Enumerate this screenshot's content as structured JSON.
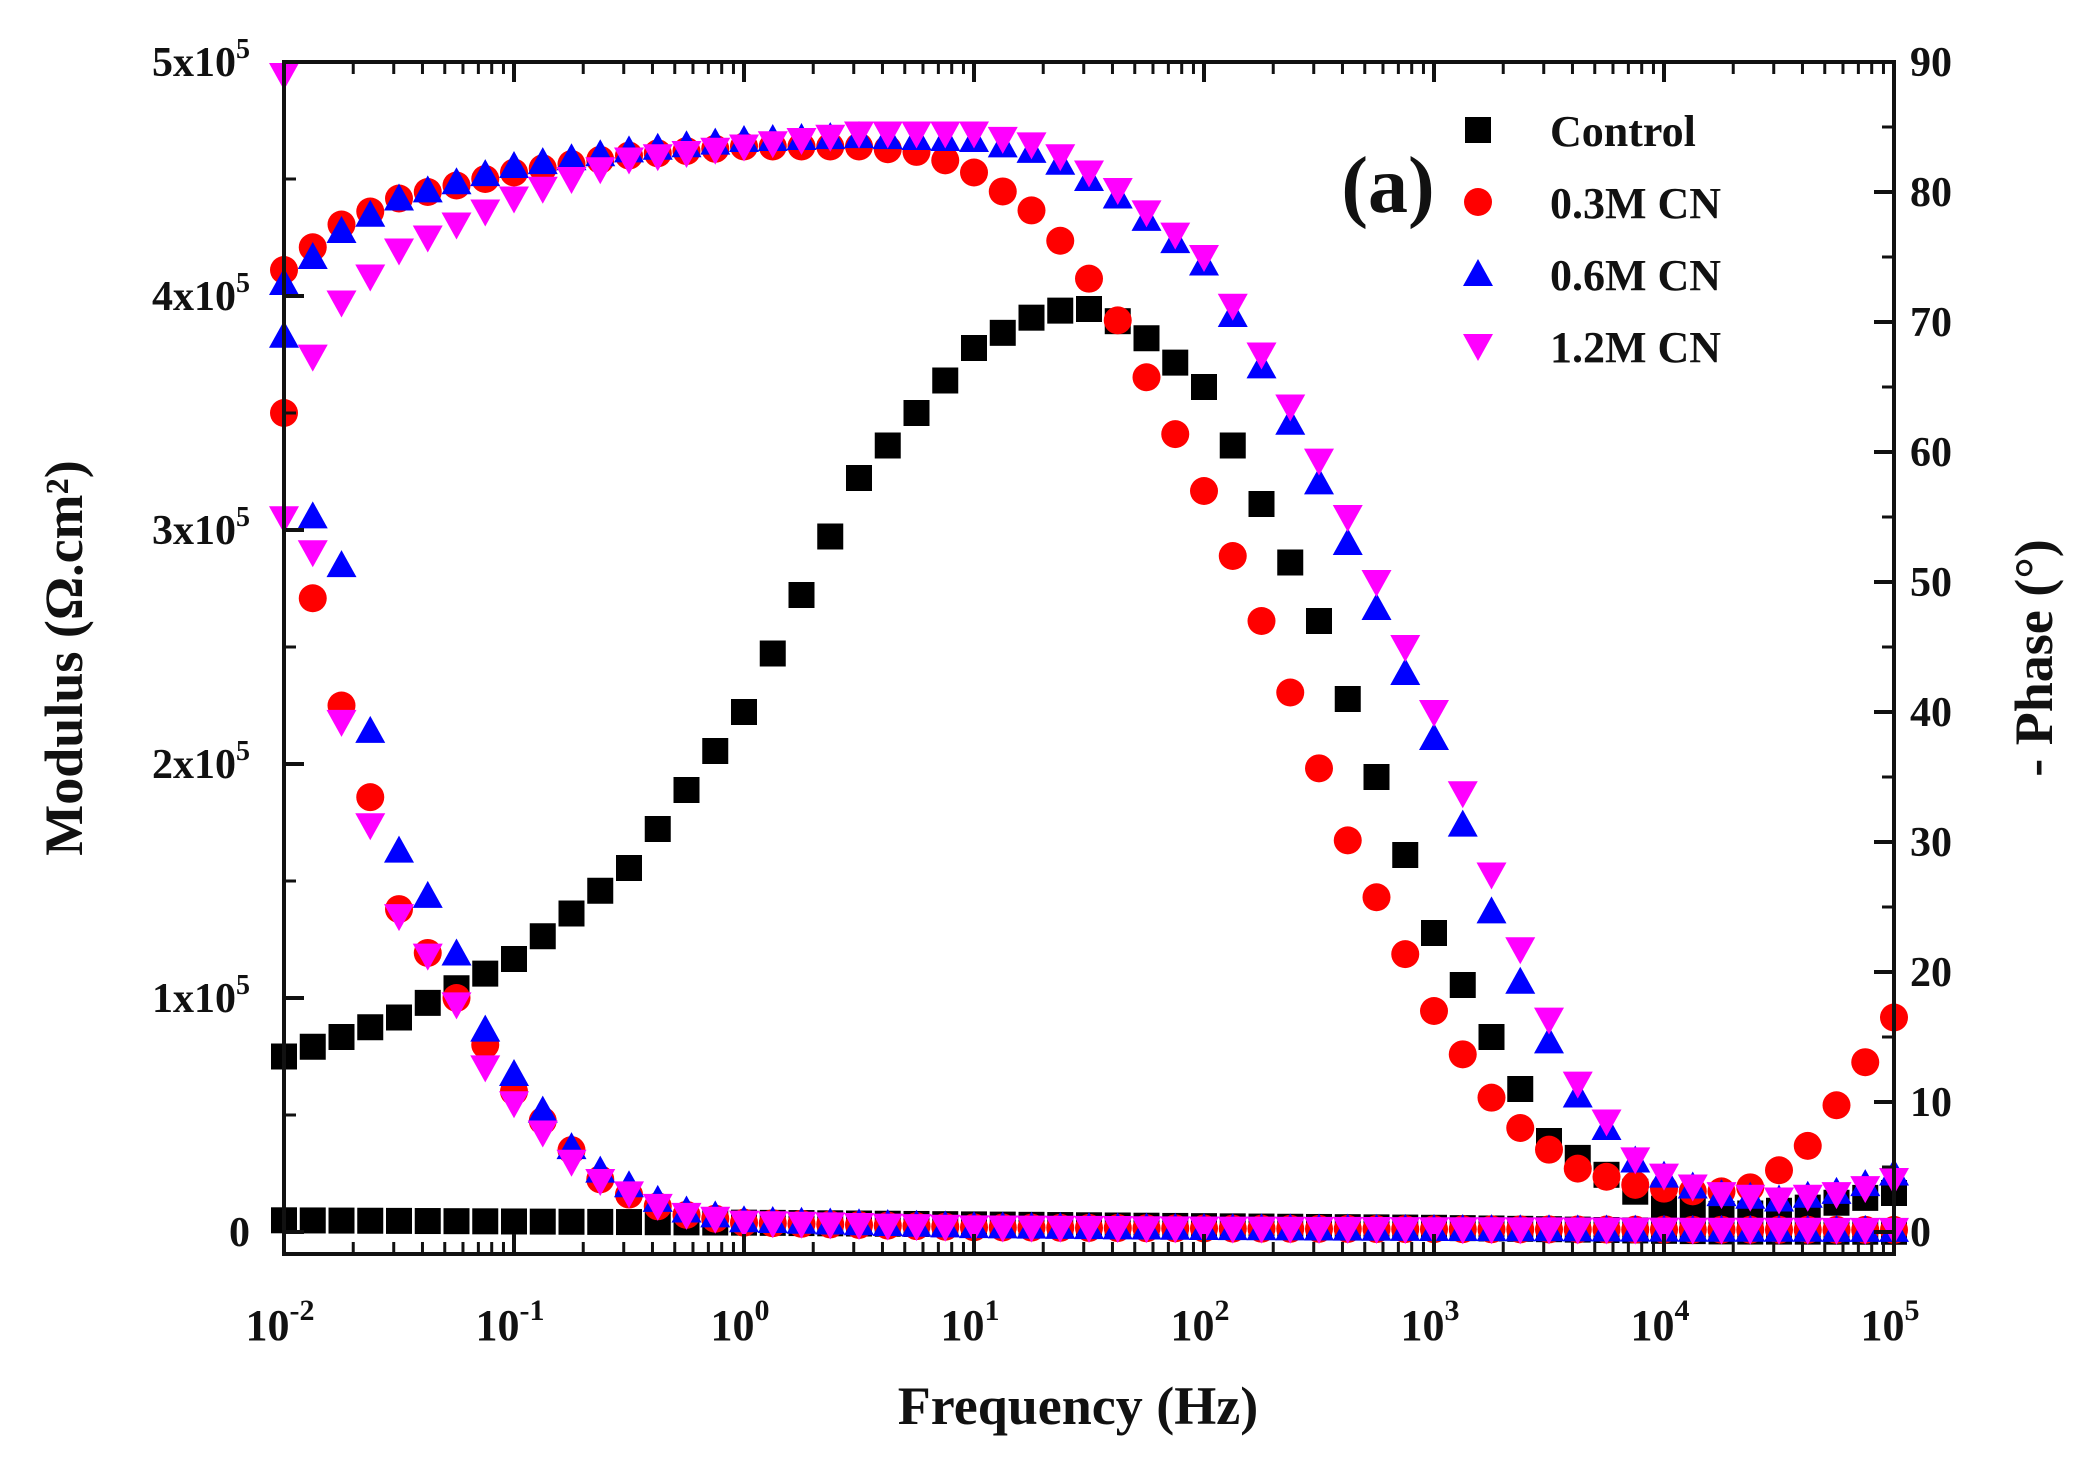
{
  "chart_data": {
    "type": "scatter",
    "panel_label": "(a)",
    "xlabel": "Frequency (Hz)",
    "ylabel_left": "Modulus (Ω.cm²)",
    "ylabel_right": "- Phase (°)",
    "xscale": "log",
    "xlim": [
      0.01,
      100000
    ],
    "ylim_left": [
      0,
      500000
    ],
    "ylim_right": [
      0,
      90
    ],
    "x_ticks": [
      {
        "base": "10",
        "exp": "-2"
      },
      {
        "base": "10",
        "exp": "-1"
      },
      {
        "base": "10",
        "exp": "0"
      },
      {
        "base": "10",
        "exp": "1"
      },
      {
        "base": "10",
        "exp": "2"
      },
      {
        "base": "10",
        "exp": "3"
      },
      {
        "base": "10",
        "exp": "4"
      },
      {
        "base": "10",
        "exp": "5"
      }
    ],
    "y_left_ticks": [
      {
        "value": 0,
        "label": "0",
        "exp": ""
      },
      {
        "value": 100000,
        "label": "1x10",
        "exp": "5"
      },
      {
        "value": 200000,
        "label": "2x10",
        "exp": "5"
      },
      {
        "value": 300000,
        "label": "3x10",
        "exp": "5"
      },
      {
        "value": 400000,
        "label": "4x10",
        "exp": "5"
      },
      {
        "value": 500000,
        "label": "5x10",
        "exp": "5"
      }
    ],
    "y_right_ticks": [
      "0",
      "10",
      "20",
      "30",
      "40",
      "50",
      "60",
      "70",
      "80",
      "90"
    ],
    "legend": {
      "position": "top-right"
    },
    "series": [
      {
        "name": "Control",
        "marker": "square",
        "color": "#000000",
        "modulus": {
          "log10_f": [
            -2,
            0,
            2,
            3,
            3.5,
            4,
            4.3,
            5
          ],
          "values": [
            5000,
            4000,
            2500,
            1800,
            1200,
            500,
            200,
            100
          ]
        },
        "phase": {
          "log10_f": [
            -2,
            -1.5,
            -1,
            -0.5,
            0,
            0.5,
            1,
            1.3,
            1.5,
            1.7,
            2,
            2.5,
            3,
            3.5,
            4,
            4.3,
            4.6,
            5
          ],
          "values": [
            13.5,
            16.5,
            21,
            28,
            40,
            58,
            68,
            70.8,
            71,
            69.5,
            65,
            47,
            23,
            7,
            1.8,
            1.3,
            1.8,
            3
          ]
        }
      },
      {
        "name": "0.3M CN",
        "marker": "circle",
        "color": "#ff0000",
        "modulus": {
          "log10_f": [
            -2,
            -1.9,
            -1.75,
            -1.6,
            -1.5,
            -1.3,
            -1,
            -0.6,
            -0.3,
            0,
            1,
            2,
            3,
            4,
            5
          ],
          "values": [
            350000,
            280000,
            225000,
            178000,
            138000,
            108000,
            60000,
            20000,
            8000,
            4000,
            2000,
            1500,
            1200,
            1000,
            900
          ]
        },
        "phase": {
          "log10_f": [
            -2,
            -1.75,
            -1.5,
            -1,
            -0.5,
            0,
            0.5,
            0.8,
            1,
            1.3,
            1.6,
            2,
            2.3,
            2.6,
            3,
            3.3,
            3.6,
            3.9,
            4.2,
            4.4,
            4.6,
            4.8,
            5
          ],
          "values": [
            74,
            77.5,
            79.5,
            81.5,
            82.8,
            83.5,
            83.5,
            83,
            81.5,
            78,
            71,
            57,
            45,
            31,
            17,
            9,
            5,
            3.5,
            3,
            3.5,
            6,
            11,
            16.5
          ]
        }
      },
      {
        "name": "0.6M CN",
        "marker": "triangle-up",
        "color": "#0000ff",
        "modulus": {
          "log10_f": [
            -2,
            -1.9,
            -1.75,
            -1.6,
            -1.5,
            -1.3,
            -1.1,
            -0.7,
            -0.3,
            0,
            1,
            2,
            3,
            4,
            5
          ],
          "values": [
            383000,
            310000,
            285000,
            200000,
            163000,
            132000,
            80000,
            30000,
            10000,
            5000,
            2500,
            1700,
            1300,
            1000,
            900
          ]
        },
        "phase": {
          "log10_f": [
            -2,
            -1.75,
            -1.5,
            -1,
            -0.5,
            0,
            0.5,
            1,
            1.3,
            1.6,
            2,
            2.3,
            2.6,
            3,
            3.3,
            3.6,
            3.9,
            4.2,
            4.5,
            4.8,
            5
          ],
          "values": [
            73,
            77,
            79.5,
            82,
            83.2,
            84,
            84.3,
            84,
            83,
            80,
            74.5,
            65,
            54,
            38,
            22,
            11,
            5,
            3,
            2.5,
            3.2,
            4.5
          ]
        }
      },
      {
        "name": "1.2M CN",
        "marker": "triangle-down",
        "color": "#ff00ff",
        "modulus": {
          "log10_f": [
            -2,
            -1.9,
            -1.75,
            -1.6,
            -1.5,
            -1.3,
            -1.1,
            -0.7,
            -0.3,
            0,
            1,
            2,
            3,
            4,
            5
          ],
          "values": [
            305000,
            305000,
            218000,
            165000,
            135000,
            108000,
            65000,
            25000,
            8000,
            4000,
            2000,
            1500,
            1200,
            1000,
            900
          ]
        },
        "phase": {
          "log10_f": [
            -2,
            -1.9,
            -1.75,
            -1.5,
            -1.25,
            -1,
            -0.5,
            0,
            0.5,
            1,
            1.3,
            1.6,
            2,
            2.3,
            2.6,
            3,
            3.3,
            3.6,
            3.9,
            4.2,
            4.5,
            4.8,
            5
          ],
          "values": [
            89,
            66.5,
            71.5,
            75.5,
            77.5,
            79.5,
            82.5,
            83.5,
            84.5,
            84.5,
            83.5,
            80.5,
            75,
            66,
            56,
            40,
            25,
            12,
            5,
            3,
            2.5,
            3,
            4
          ]
        }
      }
    ]
  }
}
